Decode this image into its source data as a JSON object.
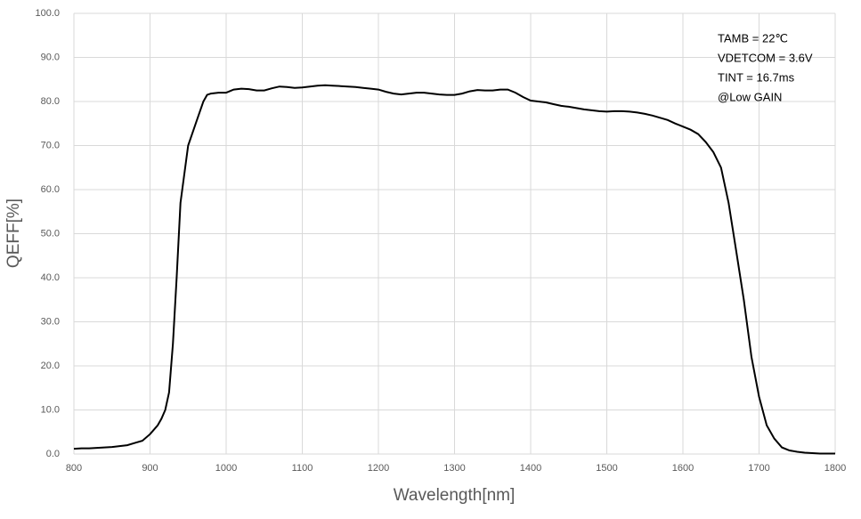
{
  "chart_data": {
    "type": "line",
    "x_label": "Wavelength[nm]",
    "y_label": "QEFF[%]",
    "annotations": [
      "TAMB = 22℃",
      "VDETCOM = 3.6V",
      "TINT = 16.7ms",
      "@Low GAIN"
    ],
    "x": [
      800,
      810,
      820,
      830,
      840,
      850,
      860,
      870,
      880,
      890,
      900,
      910,
      915,
      920,
      925,
      930,
      935,
      940,
      950,
      960,
      970,
      975,
      980,
      990,
      1000,
      1010,
      1020,
      1030,
      1040,
      1050,
      1060,
      1070,
      1080,
      1090,
      1100,
      1110,
      1120,
      1130,
      1140,
      1150,
      1160,
      1170,
      1180,
      1190,
      1200,
      1210,
      1220,
      1230,
      1240,
      1250,
      1260,
      1270,
      1280,
      1290,
      1300,
      1310,
      1320,
      1330,
      1340,
      1350,
      1360,
      1370,
      1380,
      1390,
      1400,
      1410,
      1420,
      1430,
      1440,
      1450,
      1460,
      1470,
      1480,
      1490,
      1500,
      1510,
      1520,
      1530,
      1540,
      1550,
      1560,
      1570,
      1580,
      1590,
      1600,
      1610,
      1620,
      1630,
      1640,
      1650,
      1660,
      1670,
      1680,
      1690,
      1700,
      1710,
      1720,
      1730,
      1740,
      1750,
      1760,
      1770,
      1780,
      1790,
      1800
    ],
    "series": [
      {
        "color": "#000000",
        "values": [
          1.2,
          1.3,
          1.3,
          1.4,
          1.5,
          1.6,
          1.8,
          2.0,
          2.5,
          3.0,
          4.5,
          6.5,
          8,
          10,
          14,
          25,
          40,
          57,
          70,
          75,
          80,
          81.5,
          81.8,
          82,
          82,
          82.7,
          82.9,
          82.8,
          82.5,
          82.5,
          83,
          83.4,
          83.3,
          83.1,
          83.2,
          83.4,
          83.6,
          83.7,
          83.6,
          83.5,
          83.4,
          83.3,
          83.1,
          82.9,
          82.7,
          82.2,
          81.8,
          81.6,
          81.8,
          82,
          82,
          81.8,
          81.6,
          81.5,
          81.5,
          81.8,
          82.3,
          82.6,
          82.5,
          82.5,
          82.7,
          82.7,
          82,
          81,
          80.2,
          80,
          79.8,
          79.4,
          79,
          78.8,
          78.5,
          78.2,
          78,
          77.8,
          77.7,
          77.8,
          77.8,
          77.7,
          77.5,
          77.2,
          76.8,
          76.3,
          75.8,
          75,
          74.3,
          73.6,
          72.6,
          70.8,
          68.5,
          65,
          57,
          46,
          35,
          22,
          13,
          6.5,
          3.5,
          1.5,
          0.8,
          0.5,
          0.3,
          0.2,
          0.1,
          0.1,
          0.1
        ]
      }
    ],
    "xlim": [
      800,
      1800
    ],
    "xticks": [
      800,
      900,
      1000,
      1100,
      1200,
      1300,
      1400,
      1500,
      1600,
      1700,
      1800
    ],
    "ylim": [
      0,
      100
    ],
    "yticks": [
      {
        "value": 0,
        "label": "0.0"
      },
      {
        "value": 10,
        "label": "10.0"
      },
      {
        "value": 20,
        "label": "20.0"
      },
      {
        "value": 30,
        "label": "30.0"
      },
      {
        "value": 40,
        "label": "40.0"
      },
      {
        "value": 50,
        "label": "50.0"
      },
      {
        "value": 60,
        "label": "60.0"
      },
      {
        "value": 70,
        "label": "70.0"
      },
      {
        "value": 80,
        "label": "80.0"
      },
      {
        "value": 90,
        "label": "90.0"
      },
      {
        "value": 100,
        "label": "100.0"
      }
    ],
    "grid": true
  }
}
